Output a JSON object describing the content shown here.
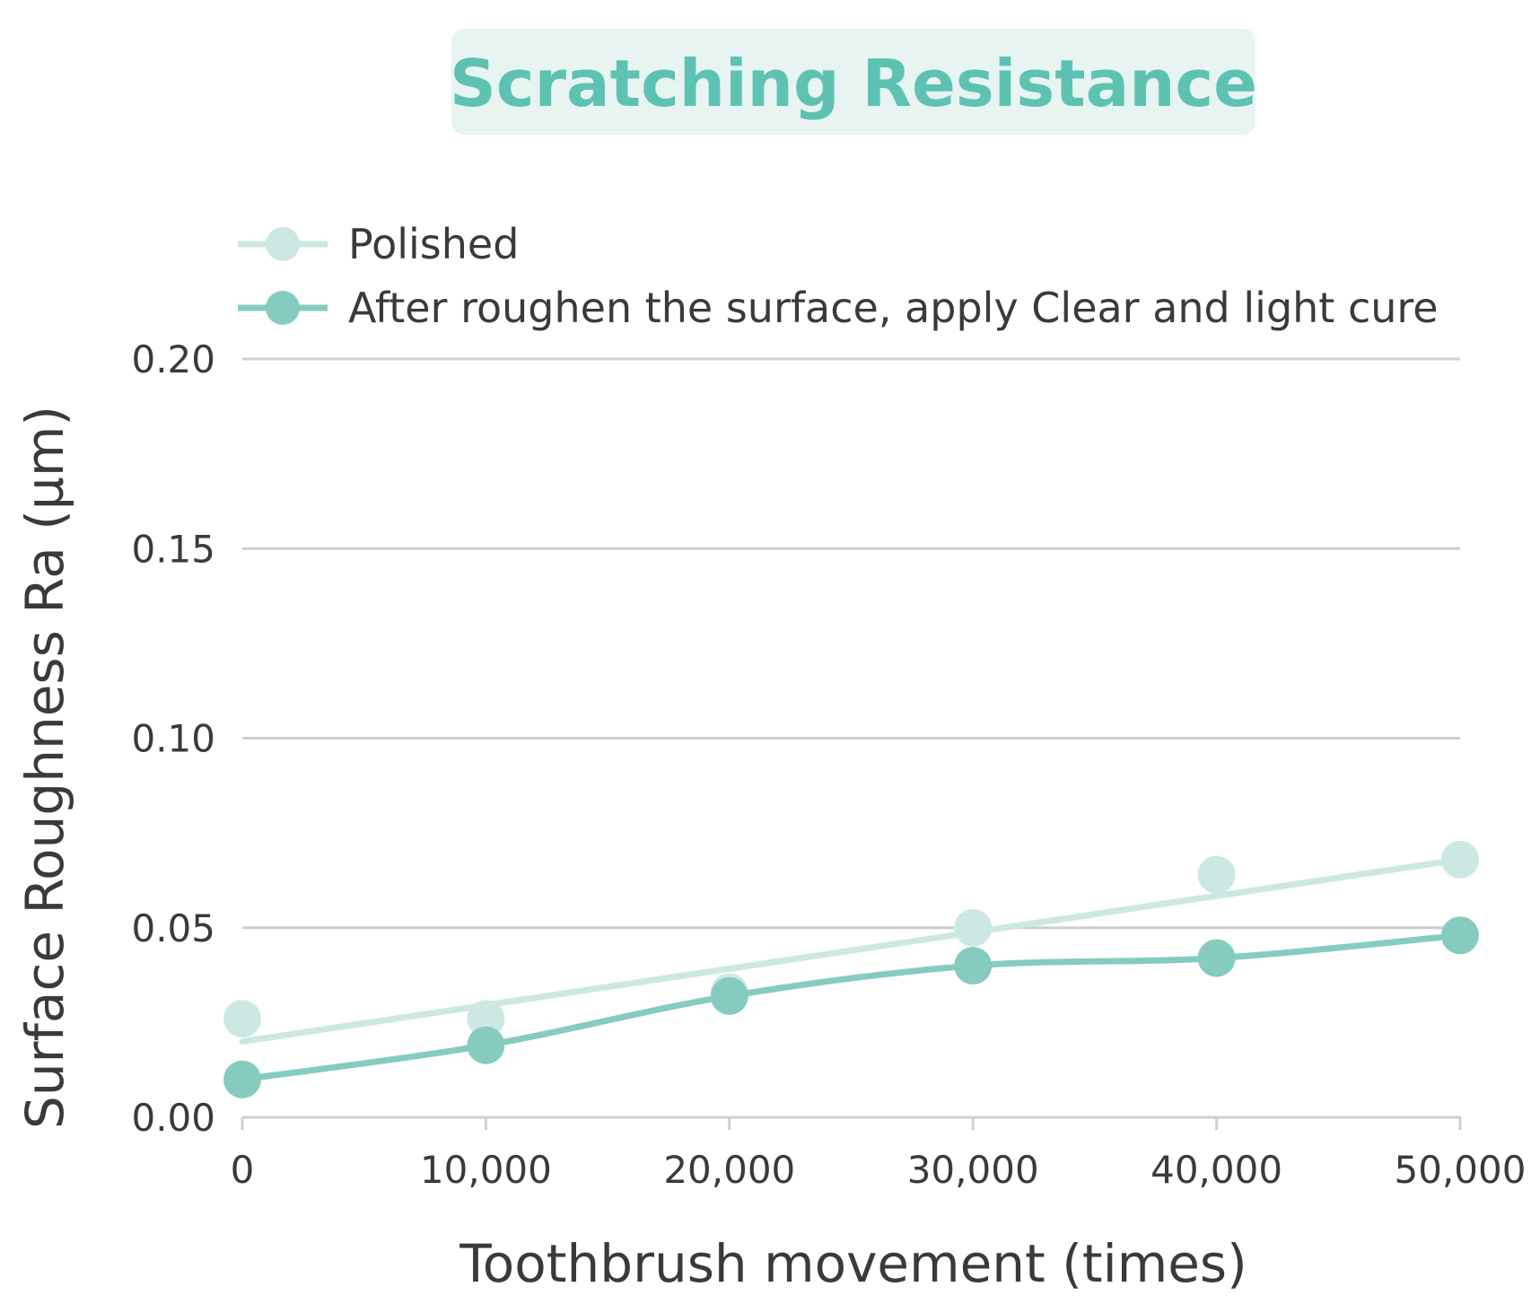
{
  "chart_data": {
    "type": "line",
    "title": "Scratching Resistance",
    "xlabel": "Toothbrush movement (times)",
    "ylabel": "Surface Roughness Ra (µm)",
    "x": [
      0,
      10000,
      20000,
      30000,
      40000,
      50000
    ],
    "x_tick_labels": [
      "0",
      "10,000",
      "20,000",
      "30,000",
      "40,000",
      "50,000"
    ],
    "y_tick_values": [
      0,
      0.05,
      0.1,
      0.15,
      0.2
    ],
    "y_tick_labels": [
      "0.00",
      "0.05",
      "0.10",
      "0.15",
      "0.20"
    ],
    "xlim": [
      0,
      50000
    ],
    "ylim": [
      0,
      0.2
    ],
    "grid": "horizontal",
    "legend_position": "top-left",
    "series": [
      {
        "name": "Polished",
        "values": [
          0.026,
          0.026,
          0.033,
          0.05,
          0.064,
          0.068
        ],
        "trend": [
          0.02,
          0.068
        ],
        "color": "#cce8e2"
      },
      {
        "name": "After roughen the surface, apply Clear and light cure",
        "values": [
          0.01,
          0.019,
          0.032,
          0.04,
          0.042,
          0.048
        ],
        "color": "#86cbc0"
      }
    ],
    "title_color": "#5ec2b2"
  }
}
